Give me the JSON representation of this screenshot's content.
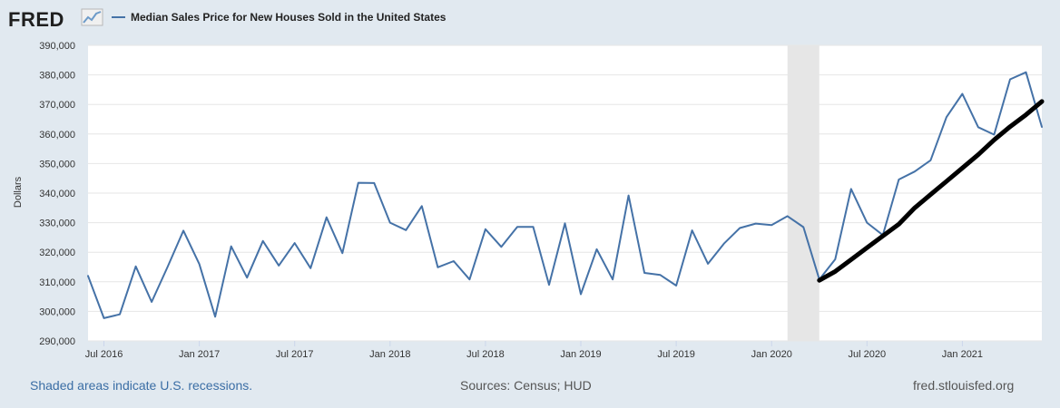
{
  "logo": {
    "text": "FRED"
  },
  "colors": {
    "series": "#4572a7",
    "trend": "#000000",
    "recession": "#e6e6e6",
    "background": "#e1e9f0",
    "plot": "#ffffff",
    "grid": "#e6e6e6"
  },
  "footer": {
    "recession_note": "Shaded areas indicate U.S. recessions.",
    "sources": "Sources: Census; HUD",
    "site": "fred.stlouisfed.org"
  },
  "chart_data": {
    "type": "line",
    "title": "",
    "ylabel": "Dollars",
    "xlabel": "",
    "ylim": [
      290000,
      390000
    ],
    "yticks": [
      290000,
      300000,
      310000,
      320000,
      330000,
      340000,
      350000,
      360000,
      370000,
      380000,
      390000
    ],
    "ytick_labels": [
      "290,000",
      "300,000",
      "310,000",
      "320,000",
      "330,000",
      "340,000",
      "350,000",
      "360,000",
      "370,000",
      "380,000",
      "390,000"
    ],
    "xticks": [
      {
        "date": "2016-07",
        "label": "Jul 2016"
      },
      {
        "date": "2017-01",
        "label": "Jan 2017"
      },
      {
        "date": "2017-07",
        "label": "Jul 2017"
      },
      {
        "date": "2018-01",
        "label": "Jan 2018"
      },
      {
        "date": "2018-07",
        "label": "Jul 2018"
      },
      {
        "date": "2019-01",
        "label": "Jan 2019"
      },
      {
        "date": "2019-07",
        "label": "Jul 2019"
      },
      {
        "date": "2020-01",
        "label": "Jan 2020"
      },
      {
        "date": "2020-07",
        "label": "Jul 2020"
      },
      {
        "date": "2021-01",
        "label": "Jan 2021"
      }
    ],
    "xlim": [
      "2016-06",
      "2021-06"
    ],
    "grid": true,
    "legend": "top-left",
    "recessions": [
      {
        "start": "2020-02",
        "end": "2020-04"
      }
    ],
    "series": [
      {
        "name": "Median Sales Price for New Houses Sold in the United States",
        "color": "#4572a7",
        "x": [
          "2016-06",
          "2016-07",
          "2016-08",
          "2016-09",
          "2016-10",
          "2016-11",
          "2016-12",
          "2017-01",
          "2017-02",
          "2017-03",
          "2017-04",
          "2017-05",
          "2017-06",
          "2017-07",
          "2017-08",
          "2017-09",
          "2017-10",
          "2017-11",
          "2017-12",
          "2018-01",
          "2018-02",
          "2018-03",
          "2018-04",
          "2018-05",
          "2018-06",
          "2018-07",
          "2018-08",
          "2018-09",
          "2018-10",
          "2018-11",
          "2018-12",
          "2019-01",
          "2019-02",
          "2019-03",
          "2019-04",
          "2019-05",
          "2019-06",
          "2019-07",
          "2019-08",
          "2019-09",
          "2019-10",
          "2019-11",
          "2019-12",
          "2020-01",
          "2020-02",
          "2020-03",
          "2020-04",
          "2020-05",
          "2020-06",
          "2020-07",
          "2020-08",
          "2020-09",
          "2020-10",
          "2020-11",
          "2020-12",
          "2021-01",
          "2021-02",
          "2021-03",
          "2021-04",
          "2021-05",
          "2021-06"
        ],
        "values": [
          312000,
          297700,
          299000,
          315200,
          303200,
          315000,
          327300,
          316000,
          298200,
          322000,
          311400,
          323800,
          315500,
          323100,
          314600,
          331800,
          319700,
          343500,
          343400,
          330000,
          327500,
          335600,
          314900,
          317000,
          310800,
          327800,
          321800,
          328600,
          328600,
          309000,
          329800,
          305800,
          321000,
          310800,
          339200,
          313000,
          312300,
          308700,
          327400,
          316100,
          322900,
          328200,
          329700,
          329200,
          332200,
          328500,
          310800,
          317600,
          341400,
          330000,
          325800,
          344600,
          347300,
          351100,
          365700,
          373600,
          362300,
          359800,
          378500,
          380900,
          362400
        ]
      },
      {
        "name": "trend",
        "color": "#000000",
        "x": [
          "2020-04",
          "2020-05",
          "2020-06",
          "2020-07",
          "2020-08",
          "2020-09",
          "2020-10",
          "2020-11",
          "2020-12",
          "2021-01",
          "2021-02",
          "2021-03",
          "2021-04",
          "2021-05",
          "2021-06"
        ],
        "values": [
          310500,
          313500,
          317500,
          321500,
          325500,
          329500,
          335000,
          339500,
          344000,
          348500,
          353000,
          358000,
          362500,
          366500,
          371000
        ]
      }
    ]
  }
}
